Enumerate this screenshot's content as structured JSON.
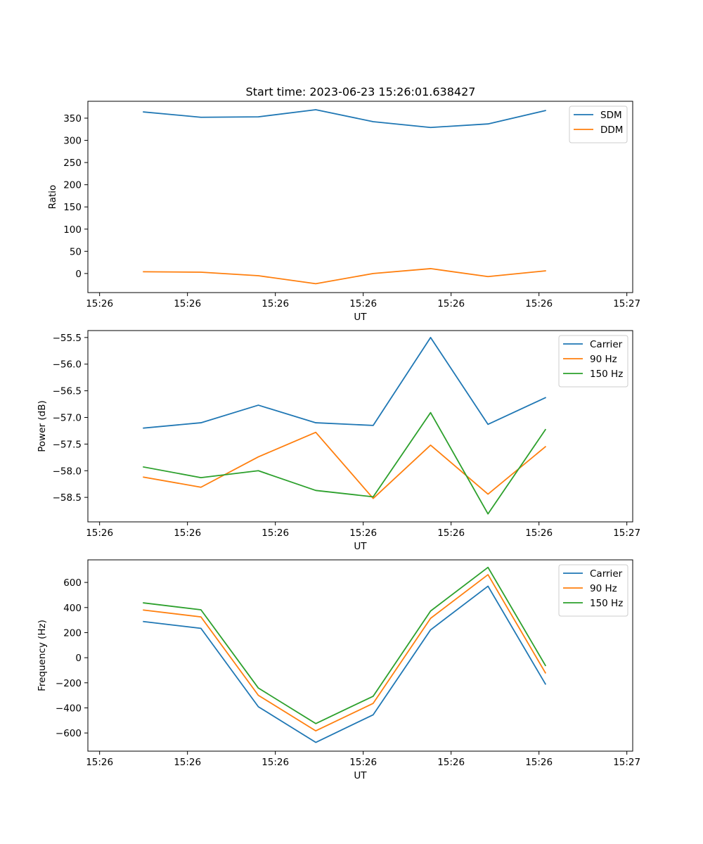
{
  "figure": {
    "title": "Start time: 2023-06-23 15:26:01.638427"
  },
  "chart_data": [
    {
      "type": "line",
      "title": "Start time: 2023-06-23 15:26:01.638427",
      "xlabel": "UT",
      "ylabel": "Ratio",
      "xlim": [
        -0.2,
        9.1
      ],
      "ylim": [
        -43,
        388
      ],
      "x_ticks": [
        0,
        1.5,
        3,
        4.5,
        6,
        7.5,
        9
      ],
      "x_tick_labels": [
        "15:26",
        "15:26",
        "15:26",
        "15:26",
        "15:26",
        "15:26",
        "15:27"
      ],
      "y_ticks": [
        0,
        50,
        100,
        150,
        200,
        250,
        300,
        350
      ],
      "y_tick_labels": [
        "0",
        "50",
        "100",
        "150",
        "200",
        "250",
        "300",
        "350"
      ],
      "x": [
        0.75,
        1.73,
        2.71,
        3.69,
        4.67,
        5.65,
        6.63,
        7.61
      ],
      "series": [
        {
          "name": "SDM",
          "color": "#1f77b4",
          "values": [
            364,
            352,
            353,
            369,
            342,
            329,
            337,
            367
          ]
        },
        {
          "name": "DDM",
          "color": "#ff7f0e",
          "values": [
            4,
            3,
            -5,
            -23,
            0,
            11,
            -7,
            6
          ]
        }
      ],
      "legend": "upper right",
      "grid": false
    },
    {
      "type": "line",
      "title": "",
      "xlabel": "UT",
      "ylabel": "Power (dB)",
      "xlim": [
        -0.2,
        9.1
      ],
      "ylim": [
        -58.96,
        -55.37
      ],
      "x_ticks": [
        0,
        1.5,
        3,
        4.5,
        6,
        7.5,
        9
      ],
      "x_tick_labels": [
        "15:26",
        "15:26",
        "15:26",
        "15:26",
        "15:26",
        "15:26",
        "15:27"
      ],
      "y_ticks": [
        -58.5,
        -58.0,
        -57.5,
        -57.0,
        -56.5,
        -56.0,
        -55.5
      ],
      "y_tick_labels": [
        "−58.5",
        "−58.0",
        "−57.5",
        "−57.0",
        "−56.5",
        "−56.0",
        "−55.5"
      ],
      "x": [
        0.75,
        1.73,
        2.71,
        3.69,
        4.67,
        5.65,
        6.63,
        7.61
      ],
      "series": [
        {
          "name": "Carrier",
          "color": "#1f77b4",
          "values": [
            -57.2,
            -57.1,
            -56.77,
            -57.1,
            -57.15,
            -55.5,
            -57.13,
            -56.63
          ]
        },
        {
          "name": "90 Hz",
          "color": "#ff7f0e",
          "values": [
            -58.12,
            -58.31,
            -57.74,
            -57.28,
            -58.52,
            -57.52,
            -58.44,
            -57.55
          ]
        },
        {
          "name": "150 Hz",
          "color": "#2ca02c",
          "values": [
            -57.93,
            -58.13,
            -58.0,
            -58.37,
            -58.49,
            -56.91,
            -58.81,
            -57.23
          ]
        }
      ],
      "legend": "upper right",
      "grid": false
    },
    {
      "type": "line",
      "title": "",
      "xlabel": "UT",
      "ylabel": "Frequency (Hz)",
      "xlim": [
        -0.2,
        9.1
      ],
      "ylim": [
        -745,
        780
      ],
      "x_ticks": [
        0,
        1.5,
        3,
        4.5,
        6,
        7.5,
        9
      ],
      "x_tick_labels": [
        "15:26",
        "15:26",
        "15:26",
        "15:26",
        "15:26",
        "15:26",
        "15:27"
      ],
      "y_ticks": [
        -600,
        -400,
        -200,
        0,
        200,
        400,
        600
      ],
      "y_tick_labels": [
        "−600",
        "−400",
        "−200",
        "0",
        "200",
        "400",
        "600"
      ],
      "x": [
        0.75,
        1.73,
        2.71,
        3.69,
        4.67,
        5.65,
        6.63,
        7.61
      ],
      "series": [
        {
          "name": "Carrier",
          "color": "#1f77b4",
          "values": [
            288,
            234,
            -391,
            -675,
            -455,
            222,
            570,
            -210
          ]
        },
        {
          "name": "90 Hz",
          "color": "#ff7f0e",
          "values": [
            380,
            325,
            -300,
            -583,
            -364,
            314,
            662,
            -121
          ]
        },
        {
          "name": "150 Hz",
          "color": "#2ca02c",
          "values": [
            437,
            382,
            -242,
            -525,
            -307,
            372,
            720,
            -62
          ]
        }
      ],
      "legend": "upper right",
      "grid": false
    }
  ]
}
